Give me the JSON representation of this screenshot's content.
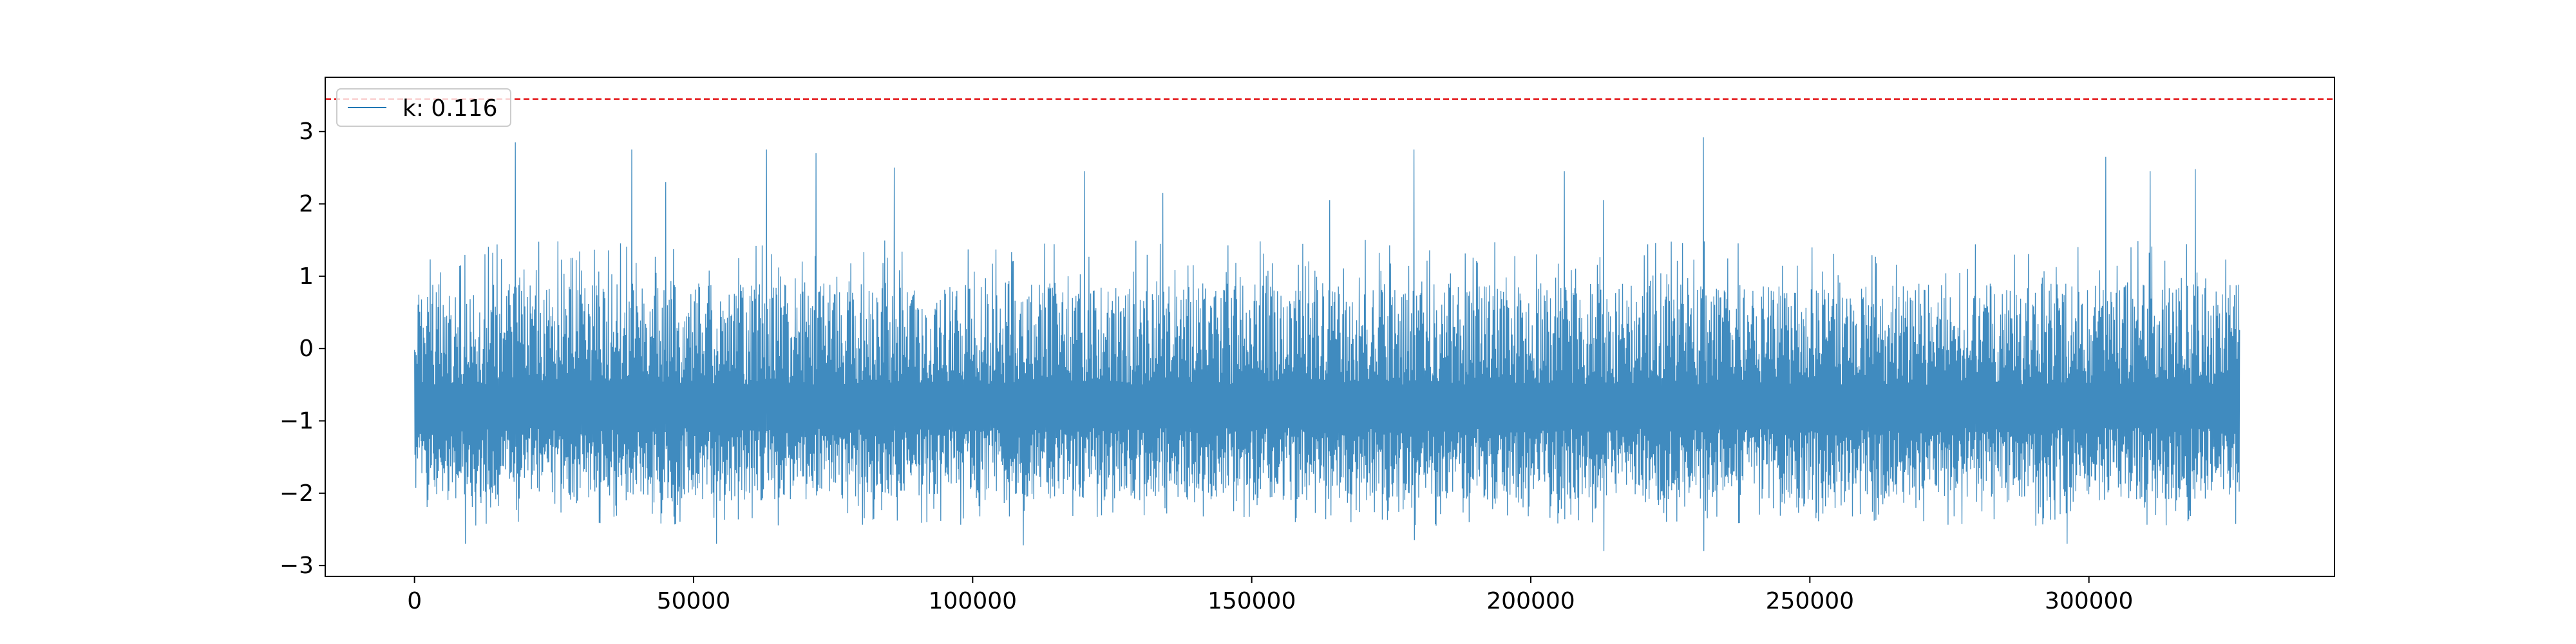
{
  "chart_data": {
    "type": "line",
    "title": "",
    "xlabel": "",
    "ylabel": "",
    "xlim": [
      -16000,
      344000
    ],
    "ylim": [
      -3.15,
      3.75
    ],
    "x_ticks": [
      0,
      50000,
      100000,
      150000,
      200000,
      250000,
      300000
    ],
    "x_tick_labels": [
      "0",
      "50000",
      "100000",
      "150000",
      "200000",
      "250000",
      "300000"
    ],
    "y_ticks": [
      -3,
      -2,
      -1,
      0,
      1,
      2,
      3
    ],
    "y_tick_labels": [
      "−3",
      "−2",
      "−1",
      "0",
      "1",
      "2",
      "3"
    ],
    "grid": false,
    "legend": {
      "placement": "upper-left",
      "entries": [
        "k: 0.116"
      ]
    },
    "series": [
      {
        "name": "k: 0.116",
        "color": "#1f77b4",
        "x_range": [
          0,
          327000
        ],
        "typical_low": -2.1,
        "typical_high": 0.9,
        "min": -2.85,
        "max": 2.92,
        "spikes": [
          {
            "x": 18000,
            "y": 2.85
          },
          {
            "x": 39000,
            "y": 2.75
          },
          {
            "x": 45000,
            "y": 2.3
          },
          {
            "x": 63000,
            "y": 2.75
          },
          {
            "x": 72000,
            "y": 2.7
          },
          {
            "x": 86000,
            "y": 2.5
          },
          {
            "x": 120000,
            "y": 2.45
          },
          {
            "x": 134000,
            "y": 2.15
          },
          {
            "x": 164000,
            "y": 2.05
          },
          {
            "x": 179000,
            "y": 2.75
          },
          {
            "x": 206000,
            "y": 2.45
          },
          {
            "x": 213000,
            "y": 2.05
          },
          {
            "x": 231000,
            "y": 2.92
          },
          {
            "x": 303000,
            "y": 2.65
          },
          {
            "x": 311000,
            "y": 2.45
          },
          {
            "x": 319000,
            "y": 2.48
          }
        ],
        "dips": [
          {
            "x": 9000,
            "y": -2.7
          },
          {
            "x": 54000,
            "y": -2.7
          },
          {
            "x": 109000,
            "y": -2.72
          },
          {
            "x": 179000,
            "y": -2.65
          },
          {
            "x": 213000,
            "y": -2.8
          },
          {
            "x": 231000,
            "y": -2.8
          },
          {
            "x": 296000,
            "y": -2.7
          }
        ]
      }
    ],
    "reference_line": {
      "y": 3.45,
      "color": "#e41a1c",
      "style": "dashed"
    }
  }
}
